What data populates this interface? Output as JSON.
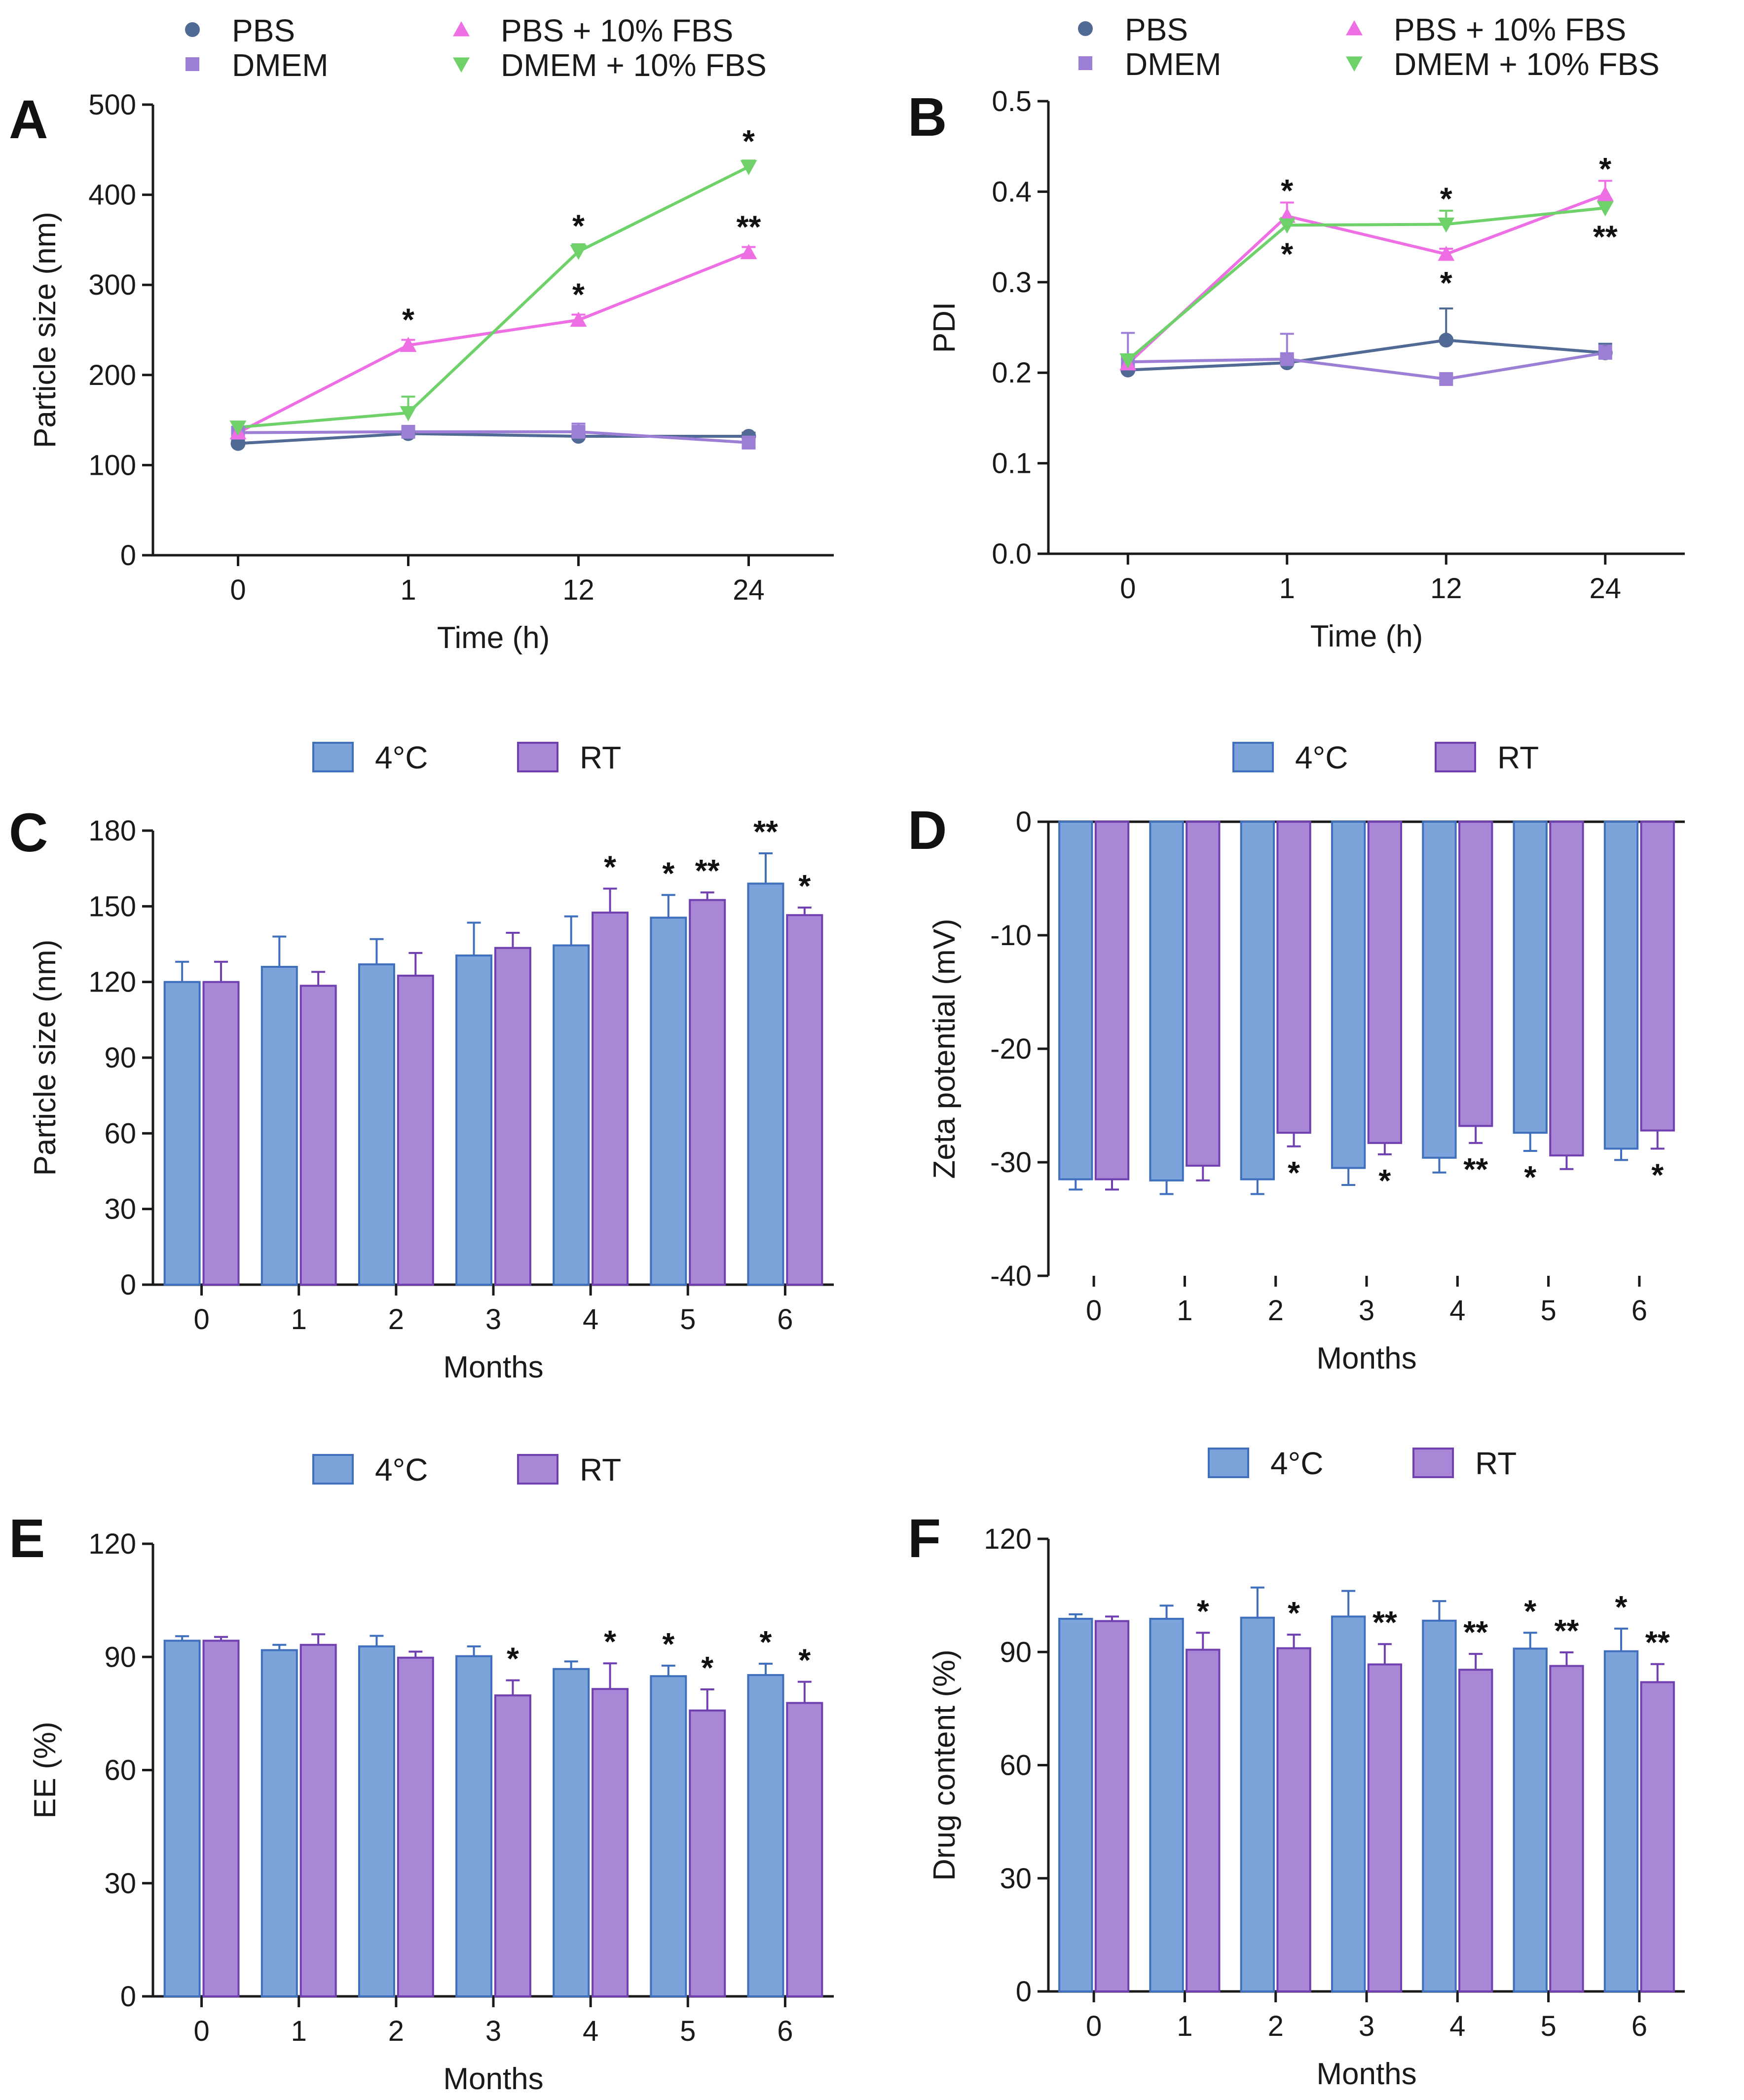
{
  "colors": {
    "pbs": "#516a95",
    "dmem": "#9c7fd4",
    "pbs_fbs": "#ee6fe4",
    "dmem_fbs": "#6fd16a",
    "bar_4c": "#7ca3da",
    "bar_4c_edge": "#3f6fbd",
    "bar_rt": "#a887d6",
    "bar_rt_edge": "#7040b0"
  },
  "chart_data": [
    {
      "id": "A",
      "type": "line",
      "panel_label": "A",
      "categories": [
        "0",
        "1",
        "12",
        "24"
      ],
      "xlabel": "Time (h)",
      "ylabel": "Particle size (nm)",
      "ylim": [
        0,
        500
      ],
      "yticks": [
        0,
        100,
        200,
        300,
        400,
        500
      ],
      "legend": [
        "PBS",
        "DMEM",
        "PBS + 10% FBS",
        "DMEM + 10% FBS"
      ],
      "legend_position": "top",
      "series": [
        {
          "name": "PBS",
          "marker": "circle",
          "color_key": "pbs",
          "values": [
            124,
            135,
            132,
            132
          ],
          "errors": [
            4,
            5,
            5,
            4
          ]
        },
        {
          "name": "DMEM",
          "marker": "square",
          "color_key": "dmem",
          "values": [
            136,
            137,
            137,
            125
          ],
          "errors": [
            5,
            6,
            9,
            5
          ]
        },
        {
          "name": "PBS + 10% FBS",
          "marker": "triangle-up",
          "color_key": "pbs_fbs",
          "values": [
            136,
            233,
            261,
            336
          ],
          "errors": [
            5,
            6,
            6,
            6
          ]
        },
        {
          "name": "DMEM + 10% FBS",
          "marker": "triangle-down",
          "color_key": "dmem_fbs",
          "values": [
            142,
            158,
            337,
            431
          ],
          "errors": [
            6,
            18,
            8,
            7
          ]
        }
      ],
      "annotations": [
        {
          "text": "*",
          "x": "1",
          "y": 233,
          "pos": "above"
        },
        {
          "text": "*",
          "x": "12",
          "y": 337,
          "pos": "above"
        },
        {
          "text": "*",
          "x": "12",
          "y": 261,
          "pos": "above"
        },
        {
          "text": "*",
          "x": "24",
          "y": 431,
          "pos": "above"
        },
        {
          "text": "**",
          "x": "24",
          "y": 336,
          "pos": "above"
        }
      ]
    },
    {
      "id": "B",
      "type": "line",
      "panel_label": "B",
      "categories": [
        "0",
        "1",
        "12",
        "24"
      ],
      "xlabel": "Time (h)",
      "ylabel": "PDI",
      "ylim": [
        0,
        0.5
      ],
      "yticks": [
        "0.0",
        "0.1",
        "0.2",
        "0.3",
        "0.4",
        "0.5"
      ],
      "legend": [
        "PBS",
        "DMEM",
        "PBS + 10% FBS",
        "DMEM + 10% FBS"
      ],
      "legend_position": "top",
      "series": [
        {
          "name": "PBS",
          "marker": "circle",
          "color_key": "pbs",
          "values": [
            0.203,
            0.211,
            0.236,
            0.222
          ],
          "errors": [
            0.004,
            0.005,
            0.035,
            0.01
          ]
        },
        {
          "name": "DMEM",
          "marker": "square",
          "color_key": "dmem",
          "values": [
            0.212,
            0.215,
            0.193,
            0.222
          ],
          "errors": [
            0.032,
            0.028,
            0.005,
            0.008
          ]
        },
        {
          "name": "PBS + 10% FBS",
          "marker": "triangle-up",
          "color_key": "pbs_fbs",
          "values": [
            0.21,
            0.373,
            0.331,
            0.397
          ],
          "errors": [
            0.005,
            0.015,
            0.006,
            0.015
          ]
        },
        {
          "name": "DMEM + 10% FBS",
          "marker": "triangle-down",
          "color_key": "dmem_fbs",
          "values": [
            0.214,
            0.363,
            0.364,
            0.382
          ],
          "errors": [
            0.006,
            0.008,
            0.015,
            0.008
          ]
        }
      ],
      "annotations": [
        {
          "text": "*",
          "x": "1",
          "y": 0.373,
          "pos": "above"
        },
        {
          "text": "*",
          "x": "1",
          "y": 0.363,
          "pos": "below"
        },
        {
          "text": "*",
          "x": "12",
          "y": 0.364,
          "pos": "above"
        },
        {
          "text": "*",
          "x": "12",
          "y": 0.331,
          "pos": "below"
        },
        {
          "text": "*",
          "x": "24",
          "y": 0.397,
          "pos": "above"
        },
        {
          "text": "**",
          "x": "24",
          "y": 0.382,
          "pos": "below"
        }
      ]
    },
    {
      "id": "C",
      "type": "bar",
      "panel_label": "C",
      "categories": [
        "0",
        "1",
        "2",
        "3",
        "4",
        "5",
        "6"
      ],
      "xlabel": "Months",
      "ylabel": "Particle size (nm)",
      "ylim": [
        0,
        180
      ],
      "yticks": [
        0,
        30,
        60,
        90,
        120,
        150,
        180
      ],
      "legend": [
        "4°C",
        "RT"
      ],
      "legend_position": "top",
      "series": [
        {
          "name": "4°C",
          "values": [
            120,
            126,
            127,
            130.5,
            134.5,
            145.5,
            159
          ],
          "errors": [
            8,
            12,
            10,
            13,
            11.5,
            9,
            12
          ],
          "stars": [
            "",
            "",
            "",
            "",
            "",
            "*",
            "**"
          ]
        },
        {
          "name": "RT",
          "values": [
            120,
            118.5,
            122.5,
            133.5,
            147.5,
            152.5,
            146.5
          ],
          "errors": [
            8,
            5.5,
            9,
            6,
            9.5,
            3,
            3
          ],
          "stars": [
            "",
            "",
            "",
            "",
            "*",
            "**",
            "*"
          ]
        }
      ]
    },
    {
      "id": "D",
      "type": "bar",
      "panel_label": "D",
      "categories": [
        "0",
        "1",
        "2",
        "3",
        "4",
        "5",
        "6"
      ],
      "xlabel": "Months",
      "ylabel": "Zeta potential (mV)",
      "ylim": [
        -40,
        0
      ],
      "yticks": [
        -40,
        -30,
        -20,
        -10,
        0
      ],
      "legend": [
        "4°C",
        "RT"
      ],
      "legend_position": "top",
      "series": [
        {
          "name": "4°C",
          "values": [
            -31.5,
            -31.6,
            -31.5,
            -30.5,
            -29.6,
            -27.4,
            -28.8
          ],
          "errors": [
            0.9,
            1.2,
            1.3,
            1.5,
            1.3,
            1.6,
            1.0
          ],
          "stars": [
            "",
            "",
            "",
            "",
            "",
            "*",
            ""
          ]
        },
        {
          "name": "RT",
          "values": [
            -31.5,
            -30.3,
            -27.4,
            -28.3,
            -26.8,
            -29.4,
            -27.2
          ],
          "errors": [
            0.9,
            1.3,
            1.2,
            1.0,
            1.5,
            1.2,
            1.6
          ],
          "stars": [
            "",
            "",
            "*",
            "*",
            "**",
            "",
            "*"
          ]
        }
      ]
    },
    {
      "id": "E",
      "type": "bar",
      "panel_label": "E",
      "categories": [
        "0",
        "1",
        "2",
        "3",
        "4",
        "5",
        "6"
      ],
      "xlabel": "Months",
      "ylabel": "EE (%)",
      "ylim": [
        0,
        120
      ],
      "yticks": [
        0,
        30,
        60,
        90,
        120
      ],
      "legend": [
        "4°C",
        "RT"
      ],
      "legend_position": "top",
      "series": [
        {
          "name": "4°C",
          "values": [
            94.3,
            91.8,
            92.8,
            90.2,
            86.8,
            84.9,
            85.2
          ],
          "errors": [
            1.2,
            1.4,
            2.8,
            2.6,
            2.0,
            2.8,
            3.0
          ],
          "stars": [
            "",
            "",
            "",
            "",
            "",
            "*",
            "*"
          ]
        },
        {
          "name": "RT",
          "values": [
            94.3,
            93.2,
            89.8,
            79.8,
            81.5,
            75.8,
            77.8
          ],
          "errors": [
            1.0,
            2.8,
            1.6,
            4.0,
            6.8,
            5.6,
            5.6
          ],
          "stars": [
            "",
            "",
            "",
            "*",
            "*",
            "*",
            "*"
          ]
        }
      ]
    },
    {
      "id": "F",
      "type": "bar",
      "panel_label": "F",
      "categories": [
        "0",
        "1",
        "2",
        "3",
        "4",
        "5",
        "6"
      ],
      "xlabel": "Months",
      "ylabel": "Drug content (%)",
      "ylim": [
        0,
        120
      ],
      "yticks": [
        0,
        30,
        60,
        90,
        120
      ],
      "legend": [
        "4°C",
        "RT"
      ],
      "legend_position": "top",
      "series": [
        {
          "name": "4°C",
          "values": [
            98.8,
            98.8,
            99.1,
            99.4,
            98.3,
            90.9,
            90.2
          ],
          "errors": [
            1.2,
            3.5,
            8.0,
            6.8,
            5.2,
            4.2,
            6.0
          ],
          "stars": [
            "",
            "",
            "",
            "",
            "",
            "*",
            "*"
          ]
        },
        {
          "name": "RT",
          "values": [
            98.2,
            90.6,
            91.0,
            86.7,
            85.3,
            86.3,
            82.0
          ],
          "errors": [
            1.2,
            4.5,
            3.6,
            5.4,
            4.2,
            3.6,
            4.8
          ],
          "stars": [
            "",
            "*",
            "*",
            "**",
            "**",
            "**",
            "**"
          ]
        }
      ]
    }
  ]
}
